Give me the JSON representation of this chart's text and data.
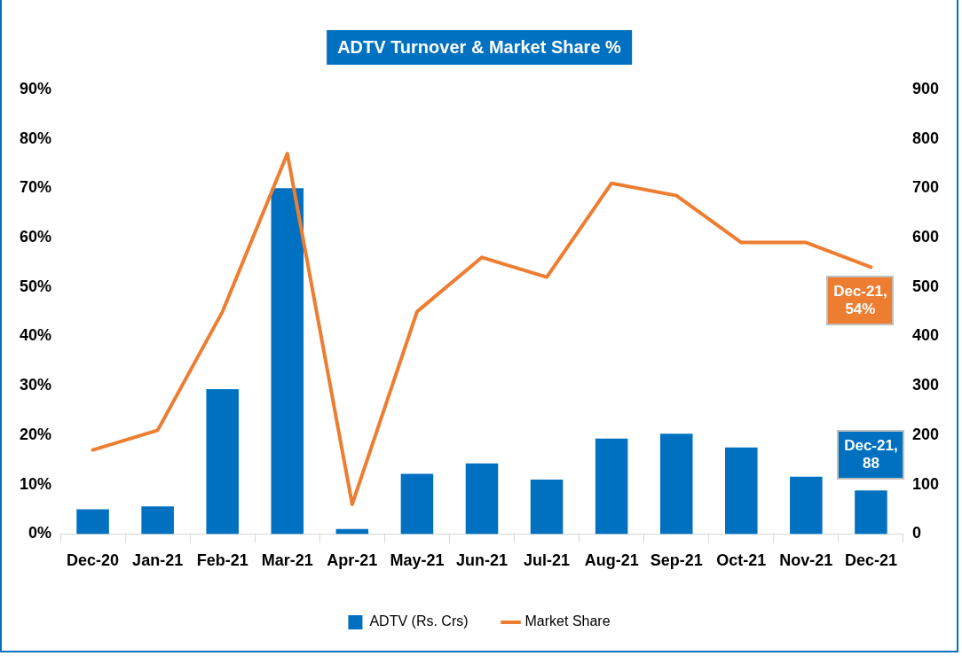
{
  "chart_data": {
    "type": "bar",
    "title": "ADTV Turnover & Market Share %",
    "categories": [
      "Dec-20",
      "Jan-21",
      "Feb-21",
      "Mar-21",
      "Apr-21",
      "May-21",
      "Jun-21",
      "Jul-21",
      "Aug-21",
      "Sep-21",
      "Oct-21",
      "Nov-21",
      "Dec-21"
    ],
    "series": [
      {
        "name": "ADTV (Rs. Crs)",
        "axis": "y2",
        "color": "#0070c0",
        "values": [
          50,
          56,
          293,
          700,
          10,
          122,
          143,
          110,
          193,
          203,
          175,
          116,
          88
        ],
        "value_labels": [
          null,
          null,
          null,
          null,
          null,
          null,
          null,
          null,
          null,
          null,
          null,
          null,
          "Dec-21, 88"
        ]
      },
      {
        "name": "Market Share",
        "type": "line",
        "axis": "y",
        "color": "#ed7d31",
        "values": [
          17,
          21,
          45,
          77,
          6,
          45,
          56,
          52,
          71,
          68.5,
          59,
          59,
          54
        ],
        "value_labels": [
          null,
          null,
          null,
          null,
          null,
          null,
          null,
          null,
          null,
          null,
          null,
          null,
          "Dec-21, 54%"
        ]
      }
    ],
    "ylim": [
      0,
      90
    ],
    "yticks": [
      {
        "value": 0,
        "label": "0%"
      },
      {
        "value": 10,
        "label": "10%"
      },
      {
        "value": 20,
        "label": "20%"
      },
      {
        "value": 30,
        "label": "30%"
      },
      {
        "value": 40,
        "label": "40%"
      },
      {
        "value": 50,
        "label": "50%"
      },
      {
        "value": 60,
        "label": "60%"
      },
      {
        "value": 70,
        "label": "70%"
      },
      {
        "value": 80,
        "label": "80%"
      },
      {
        "value": 90,
        "label": "90%"
      }
    ],
    "y2lim": [
      0,
      900
    ],
    "y2ticks": [
      0,
      100,
      200,
      300,
      400,
      500,
      600,
      700,
      800,
      900
    ],
    "grid": false,
    "legend": "bottom",
    "marker": "none",
    "line_style": "solid"
  }
}
